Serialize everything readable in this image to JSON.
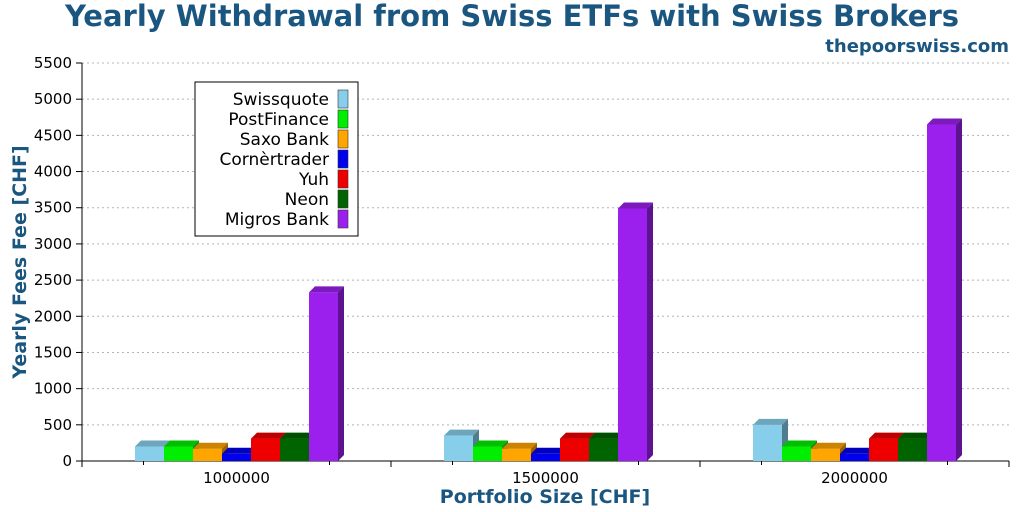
{
  "chart_data": {
    "type": "bar",
    "title": "Yearly Withdrawal from Swiss ETFs with Swiss Brokers",
    "subtitle": "thepoorswiss.com",
    "xlabel": "Portfolio Size [CHF]",
    "ylabel": "Yearly Fees Fee [CHF]",
    "categories": [
      "1000000",
      "1500000",
      "2000000"
    ],
    "ylim": [
      0,
      5500
    ],
    "yticks": [
      "0",
      "500",
      "1000",
      "1500",
      "2000",
      "2500",
      "3000",
      "3500",
      "4000",
      "4500",
      "5000",
      "5500"
    ],
    "grid": true,
    "legend_position": "top-left",
    "series": [
      {
        "name": "Swissquote",
        "color": "#87ceeb",
        "values": [
          200,
          350,
          500
        ]
      },
      {
        "name": "PostFinance",
        "color": "#00ee00",
        "values": [
          200,
          200,
          200
        ]
      },
      {
        "name": "Saxo Bank",
        "color": "#ffa500",
        "values": [
          170,
          170,
          170
        ]
      },
      {
        "name": "Cornèrtrader",
        "color": "#0000ee",
        "values": [
          100,
          100,
          100
        ]
      },
      {
        "name": "Yuh",
        "color": "#ee0000",
        "values": [
          310,
          310,
          310
        ]
      },
      {
        "name": "Neon",
        "color": "#006400",
        "values": [
          310,
          310,
          310
        ]
      },
      {
        "name": "Migros Bank",
        "color": "#9b20ee",
        "values": [
          2330,
          3490,
          4650
        ]
      }
    ]
  }
}
